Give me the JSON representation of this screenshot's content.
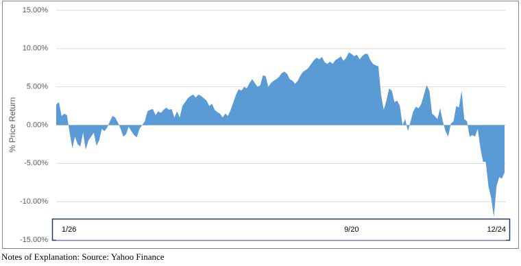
{
  "chart_data": {
    "type": "area",
    "ylabel": "% Price Return",
    "color": "#5b9bd5",
    "grid": true,
    "ylim": [
      -15,
      15
    ],
    "yticks": [
      {
        "value": -15,
        "label": "-15.00%"
      },
      {
        "value": -10,
        "label": "-10.00%"
      },
      {
        "value": -5,
        "label": "-5.00%"
      },
      {
        "value": 0,
        "label": "0.00%"
      },
      {
        "value": 5,
        "label": "5.00%"
      },
      {
        "value": 10,
        "label": "10.00%"
      },
      {
        "value": 15,
        "label": "15.00%"
      }
    ],
    "categories": [
      "1/26",
      null,
      null,
      null,
      null,
      null,
      null,
      null,
      null,
      null,
      null,
      null,
      null,
      null,
      null,
      null,
      null,
      null,
      null,
      null,
      null,
      null,
      null,
      null,
      null,
      null,
      null,
      null,
      null,
      null,
      null,
      null,
      null,
      null,
      null,
      null,
      null,
      null,
      null,
      null,
      null,
      null,
      null,
      null,
      null,
      null,
      null,
      null,
      null,
      null,
      null,
      null,
      null,
      null,
      null,
      null,
      null,
      null,
      null,
      null,
      null,
      null,
      null,
      null,
      null,
      null,
      null,
      null,
      null,
      null,
      null,
      null,
      null,
      null,
      null,
      null,
      null,
      null,
      null,
      null,
      null,
      null,
      null,
      null,
      null,
      null,
      null,
      null,
      null,
      null,
      null,
      null,
      null,
      null,
      null,
      null,
      null,
      null,
      null,
      null,
      null,
      null,
      null,
      null,
      null,
      null,
      null,
      null,
      null,
      null,
      "9/20",
      null,
      null,
      null,
      null,
      null,
      null,
      null,
      null,
      null,
      null,
      null,
      null,
      null,
      null,
      null,
      null,
      null,
      null,
      null,
      null,
      null,
      null,
      null,
      null,
      null,
      null,
      null,
      null,
      null,
      null,
      null,
      null,
      null,
      null,
      null,
      null,
      null,
      null,
      null,
      null,
      null,
      null,
      null,
      null,
      null,
      null,
      null,
      null,
      null,
      null,
      null,
      null,
      null,
      null,
      null,
      null,
      "12/24"
    ],
    "values": [
      2.7,
      3.0,
      1.2,
      1.5,
      1.3,
      -1,
      -3,
      -1.5,
      -2.5,
      -2.8,
      -1,
      -3.2,
      -2,
      -1.5,
      -1,
      -2.7,
      -2,
      -0.5,
      -0.8,
      -0.3,
      0.5,
      1.2,
      1,
      0.3,
      -0.5,
      -1.5,
      -1.2,
      -0.2,
      -0.8,
      -1.3,
      -1.6,
      -0.5,
      0,
      0.5,
      1.8,
      2,
      2.1,
      1.3,
      1.8,
      1.6,
      2,
      2.3,
      2,
      2.1,
      1,
      1.8,
      1,
      2.5,
      3,
      3.5,
      3.8,
      4,
      3.6,
      4,
      3.8,
      3.5,
      3.2,
      2.5,
      2.8,
      2.0,
      1.7,
      1.5,
      1.0,
      1.5,
      1.2,
      2,
      3,
      4,
      4.7,
      4.5,
      5,
      4.8,
      5.5,
      6.0,
      5.5,
      5,
      5.2,
      6.5,
      6.4,
      5.0,
      5.5,
      5.8,
      6,
      6.3,
      6.8,
      7,
      6.7,
      6,
      5.8,
      5.4,
      5.8,
      6.5,
      7,
      7.2,
      7.5,
      8.0,
      8.5,
      8.8,
      8.6,
      8.9,
      8.2,
      8,
      8.3,
      8.0,
      8.5,
      8.7,
      9,
      8.4,
      8.8,
      9.5,
      9.3,
      9,
      9.2,
      8.6,
      9.0,
      9.3,
      9.3,
      8.5,
      8.0,
      7.8,
      7.7,
      4,
      2,
      3.2,
      4.8,
      4.5,
      3.0,
      3.2,
      2.5,
      0,
      0.8,
      -0.8,
      0.5,
      1.8,
      2.4,
      2.2,
      2.8,
      4.0,
      5.2,
      4.5,
      1.5,
      1.2,
      0.8,
      2.2,
      0.5,
      -0.8,
      -1.5,
      0.2,
      0.5,
      2.5,
      2.3,
      4.5,
      0.8,
      0.5,
      -1.5,
      -1.3,
      -1.5,
      -0.5,
      -3,
      -4.8,
      -4.8,
      -8,
      -9.5,
      -12,
      -8,
      -6.8,
      -7,
      -6.2
    ]
  },
  "footer": "Notes of Explanation:  Source:  Yahoo Finance"
}
